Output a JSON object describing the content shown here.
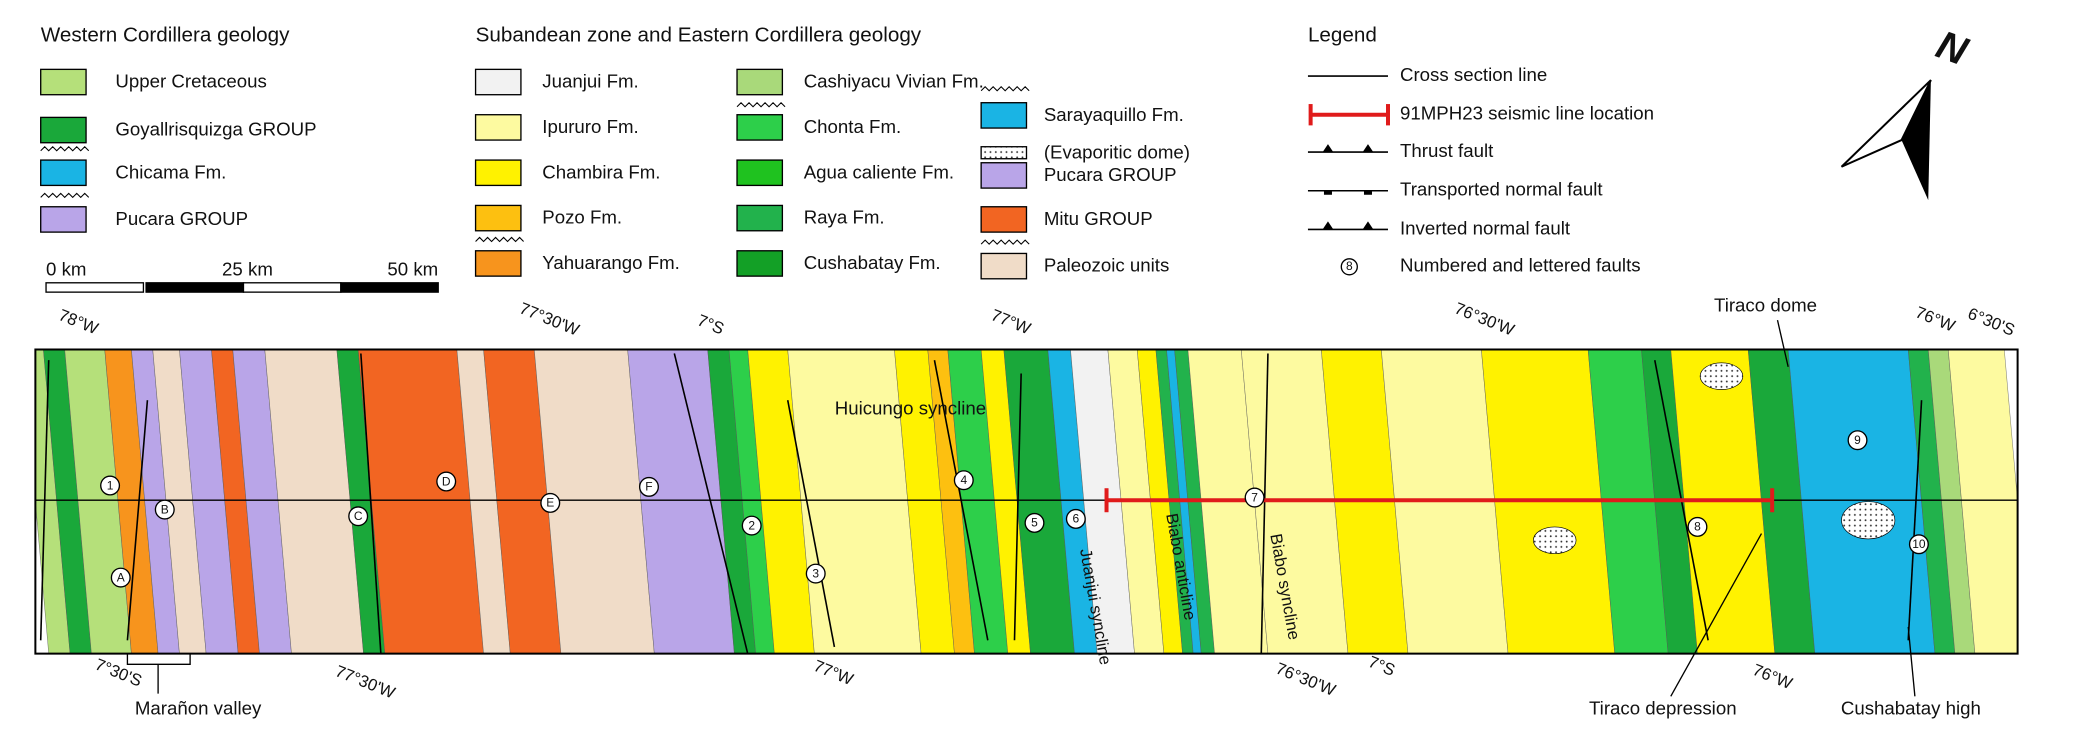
{
  "western": {
    "title": "Western Cordillera geology",
    "items": [
      {
        "label": "Upper Cretaceous",
        "color": "#b5e07a"
      },
      {
        "label": "Goyallrisquizga GROUP",
        "color": "#1aa83a"
      },
      {
        "label": "Chicama Fm.",
        "color": "#1ab4e4"
      },
      {
        "label": "Pucara GROUP",
        "color": "#b9a5e8"
      }
    ]
  },
  "scale": {
    "labels": [
      "0 km",
      "25 km",
      "50 km"
    ]
  },
  "subandean": {
    "title": "Subandean zone and Eastern Cordillera geology",
    "columns": [
      [
        {
          "label": "Juanjui Fm.",
          "color": "#f2f2f2"
        },
        {
          "label": "Ipururo Fm.",
          "color": "#fdfaa0"
        },
        {
          "label": "Chambira Fm.",
          "color": "#fff200"
        },
        {
          "label": "Pozo Fm.",
          "color": "#fdc010"
        },
        {
          "label": "Yahuarango Fm.",
          "color": "#f7941d"
        }
      ],
      [
        {
          "label": "Cashiyacu Vivian Fm.",
          "color": "#a9d97a"
        },
        {
          "label": "Chonta Fm.",
          "color": "#2dcf4a"
        },
        {
          "label": "Agua caliente Fm.",
          "color": "#1fc21f"
        },
        {
          "label": "Raya Fm.",
          "color": "#22b24c"
        },
        {
          "label": "Cushabatay Fm.",
          "color": "#13a026"
        }
      ],
      [
        {
          "label": "Sarayaquillo Fm.",
          "color": "#1ab4e4"
        },
        {
          "label": "(Evaporitic dome)",
          "color": "#ffffff"
        },
        {
          "label": "Pucara GROUP",
          "color": "#b9a5e8"
        },
        {
          "label": "Mitu GROUP",
          "color": "#f26522"
        },
        {
          "label": "Paleozoic units",
          "color": "#f0dcc8"
        }
      ]
    ]
  },
  "legend": {
    "title": "Legend",
    "items": [
      "Cross section line",
      "91MPH23 seismic line location",
      "Thrust fault",
      "Transported normal fault",
      "Inverted normal fault",
      "Numbered and lettered faults"
    ],
    "fault_marker": "8"
  },
  "north": "N",
  "map": {
    "top_coordinates": [
      "78°W",
      "77°30'W",
      "7°S",
      "77°W",
      "76°30'W",
      "76°W",
      "6°30'S"
    ],
    "bottom_coordinates": [
      "7°30'S",
      "77°30'W",
      "77°W",
      "76°30'W",
      "7°S",
      "76°W"
    ],
    "features": [
      "Marañon valley",
      "Huicungo syncline",
      "Juanjui syncline",
      "Biabo anticline",
      "Biabo syncline",
      "Tiraco dome",
      "Tiraco depression",
      "Cushabatay high"
    ],
    "faults": [
      "1",
      "2",
      "3",
      "4",
      "5",
      "6",
      "7",
      "8",
      "9",
      "10",
      "A",
      "B",
      "C",
      "D",
      "E",
      "F"
    ]
  }
}
